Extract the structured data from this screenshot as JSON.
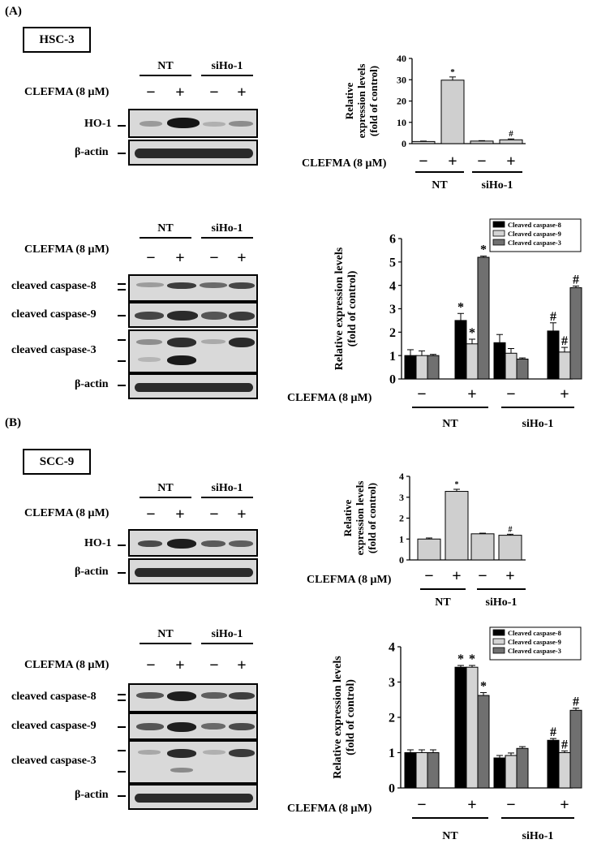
{
  "panelA": {
    "letter": "(A)",
    "cell_line": "HSC-3",
    "top": {
      "groups": [
        "NT",
        "siHo-1"
      ],
      "treatment_label": "CLEFMA (8 μM)",
      "signs": [
        "−",
        "+",
        "−",
        "+"
      ],
      "rows": [
        "HO-1",
        "β-actin"
      ]
    },
    "bottom": {
      "groups": [
        "NT",
        "siHo-1"
      ],
      "treatment_label": "CLEFMA (8 μM)",
      "signs": [
        "−",
        "+",
        "−",
        "+"
      ],
      "rows": [
        "cleaved caspase-8",
        "cleaved caspase-9",
        "cleaved caspase-3",
        "β-actin"
      ]
    }
  },
  "panelB": {
    "letter": "(B)",
    "cell_line": "SCC-9",
    "top": {
      "groups": [
        "NT",
        "siHo-1"
      ],
      "treatment_label": "CLEFMA (8 μM)",
      "signs": [
        "−",
        "+",
        "−",
        "+"
      ],
      "rows": [
        "HO-1",
        "β-actin"
      ]
    },
    "bottom": {
      "groups": [
        "NT",
        "siHo-1"
      ],
      "treatment_label": "CLEFMA (8 μM)",
      "signs": [
        "−",
        "+",
        "−",
        "+"
      ],
      "rows": [
        "cleaved caspase-8",
        "cleaved caspase-9",
        "cleaved caspase-3",
        "β-actin"
      ]
    }
  },
  "chart_data": [
    {
      "id": "A-HO1",
      "type": "bar",
      "ylabel": "Relative expression levels (fold of control)",
      "ylim": [
        0,
        40
      ],
      "yticks": [
        0,
        10,
        20,
        30,
        40
      ],
      "treatment_label": "CLEFMA (8 μM)",
      "signs": [
        "−",
        "+",
        "−",
        "+"
      ],
      "groups": [
        "NT",
        "siHo-1"
      ],
      "series": [
        {
          "values": [
            1,
            29.8,
            1.2,
            1.8
          ],
          "errors": [
            0.2,
            1.5,
            0.2,
            0.4
          ],
          "color": "#cfcfcf"
        }
      ],
      "annotations": [
        "",
        "*",
        "",
        "#"
      ]
    },
    {
      "id": "A-caspase",
      "type": "bar",
      "ylabel": "Relative expression levels (fold of control)",
      "ylim": [
        0,
        6
      ],
      "yticks": [
        0,
        1,
        2,
        3,
        4,
        5,
        6
      ],
      "treatment_label": "CLEFMA (8 μM)",
      "signs": [
        "−",
        "+",
        "−",
        "+"
      ],
      "groups": [
        "NT",
        "siHo-1"
      ],
      "legend": [
        "Cleaved caspase-8",
        "Cleaved caspase-9",
        "Cleaved caspase-3"
      ],
      "legend_position": "top-right",
      "series": [
        {
          "values": [
            1.0,
            2.5,
            1.55,
            2.05
          ],
          "errors": [
            0.25,
            0.3,
            0.35,
            0.35
          ],
          "color": "#000000",
          "annotations": [
            "",
            "*",
            "",
            "#"
          ]
        },
        {
          "values": [
            1.0,
            1.5,
            1.1,
            1.15
          ],
          "errors": [
            0.2,
            0.2,
            0.2,
            0.2
          ],
          "color": "#d4d4d4",
          "annotations": [
            "",
            "*",
            "",
            "#"
          ]
        },
        {
          "values": [
            1.0,
            5.2,
            0.85,
            3.9
          ],
          "errors": [
            0.05,
            0.05,
            0.05,
            0.07
          ],
          "color": "#707070",
          "annotations": [
            "",
            "*",
            "",
            "#"
          ]
        }
      ]
    },
    {
      "id": "B-HO1",
      "type": "bar",
      "ylabel": "Relative expression levels (fold of control)",
      "ylim": [
        0,
        4
      ],
      "yticks": [
        0,
        1,
        2,
        3,
        4
      ],
      "treatment_label": "CLEFMA (8 μM)",
      "signs": [
        "−",
        "+",
        "−",
        "+"
      ],
      "groups": [
        "NT",
        "siHo-1"
      ],
      "series": [
        {
          "values": [
            1.0,
            3.28,
            1.25,
            1.18
          ],
          "errors": [
            0.05,
            0.1,
            0.03,
            0.05
          ],
          "color": "#cfcfcf"
        }
      ],
      "annotations": [
        "",
        "*",
        "",
        "#"
      ]
    },
    {
      "id": "B-caspase",
      "type": "bar",
      "ylabel": "Relative expression levels (fold of control)",
      "ylim": [
        0,
        4
      ],
      "yticks": [
        0,
        1,
        2,
        3,
        4
      ],
      "treatment_label": "CLEFMA (8 μM)",
      "signs": [
        "−",
        "+",
        "−",
        "+"
      ],
      "groups": [
        "NT",
        "siHo-1"
      ],
      "legend": [
        "Cleaved caspase-8",
        "Cleaved caspase-9",
        "Cleaved caspase-3"
      ],
      "legend_position": "top-right",
      "series": [
        {
          "values": [
            1.0,
            3.42,
            0.85,
            1.35
          ],
          "errors": [
            0.08,
            0.05,
            0.07,
            0.05
          ],
          "color": "#000000",
          "annotations": [
            "",
            "*",
            "",
            "#"
          ]
        },
        {
          "values": [
            1.0,
            3.42,
            0.92,
            1.0
          ],
          "errors": [
            0.08,
            0.05,
            0.07,
            0.05
          ],
          "color": "#d4d4d4",
          "annotations": [
            "",
            "*",
            "",
            "#"
          ]
        },
        {
          "values": [
            1.0,
            2.62,
            1.12,
            2.2
          ],
          "errors": [
            0.08,
            0.08,
            0.05,
            0.06
          ],
          "color": "#707070",
          "annotations": [
            "",
            "*",
            "",
            "#"
          ]
        }
      ]
    }
  ]
}
